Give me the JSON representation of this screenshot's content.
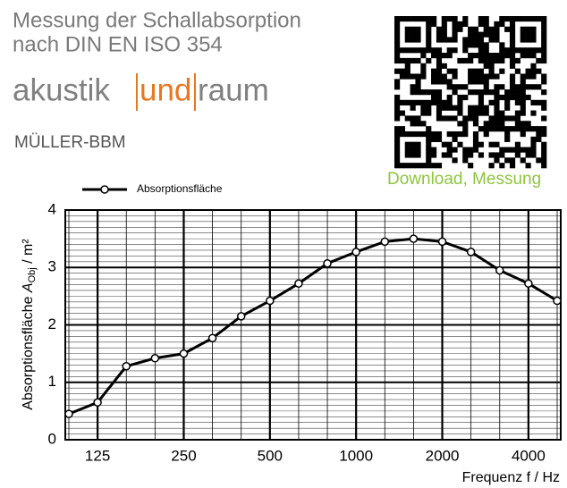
{
  "header": {
    "title_line1": "Messung der Schallabsorption",
    "title_line2": "nach DIN EN ISO 354",
    "logo_part1": "akustik",
    "logo_part2": "und",
    "logo_part3": "raum",
    "company": "MÜLLER-BBM",
    "download": "Download, Messung"
  },
  "chart_data": {
    "type": "line",
    "legend": "Absorptionsfläche",
    "y_label_main": "Absorptionsfläche",
    "y_label_symbol": "A",
    "y_label_sub": "Obj",
    "y_label_unit": "/ m²",
    "x_label": "Frequenz f / Hz",
    "categories": [
      null,
      "125",
      null,
      null,
      "250",
      null,
      null,
      "500",
      null,
      null,
      "1000",
      null,
      null,
      "2000",
      null,
      null,
      "4000",
      null
    ],
    "series": [
      {
        "name": "Absorptionsfläche",
        "color": "#000000",
        "values": [
          0.45,
          0.65,
          1.28,
          1.42,
          1.5,
          1.77,
          2.15,
          2.42,
          2.72,
          3.07,
          3.27,
          3.45,
          3.5,
          3.45,
          3.27,
          2.95,
          2.72,
          2.42
        ]
      }
    ],
    "ylim": [
      0,
      4
    ],
    "yticks": [
      0,
      1,
      2,
      3,
      4
    ],
    "grid": true
  }
}
